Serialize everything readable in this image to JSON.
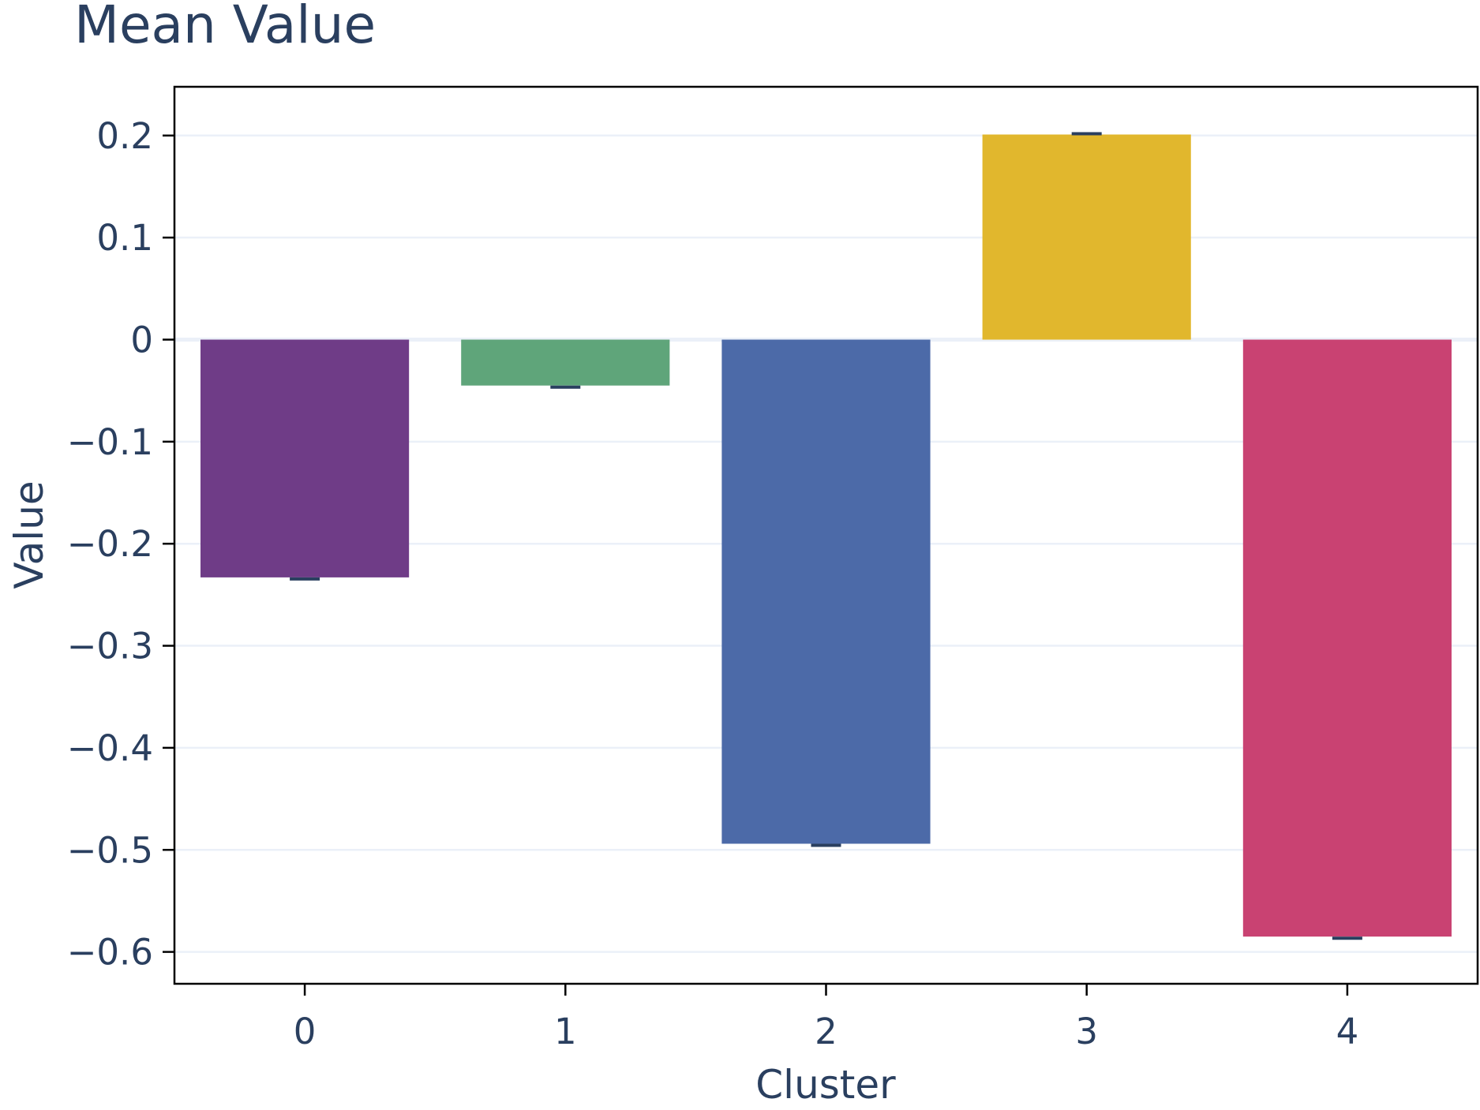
{
  "chart_data": {
    "type": "bar",
    "title": "Mean Value",
    "xlabel": "Cluster",
    "ylabel": "Value",
    "categories": [
      "0",
      "1",
      "2",
      "3",
      "4"
    ],
    "values": [
      -0.233,
      -0.045,
      -0.494,
      0.201,
      -0.585
    ],
    "bar_colors": [
      "#6f3c87",
      "#5fa57a",
      "#4c6aa8",
      "#e1b72d",
      "#c94272"
    ],
    "ylim": [
      -0.63,
      0.25
    ],
    "yticks": [
      0.2,
      0.1,
      0,
      -0.1,
      -0.2,
      -0.3,
      -0.4,
      -0.5,
      -0.6
    ],
    "ytick_labels": [
      "0.2",
      "0.1",
      "0",
      "−0.1",
      "−0.2",
      "−0.3",
      "−0.4",
      "−0.5",
      "−0.6"
    ],
    "error_bars": true,
    "grid": true,
    "legend": "none",
    "colors": {
      "text": "#2a3f5f",
      "grid": "#ebf0f8",
      "axis": "#000000",
      "error_bar": "#2a3f5f"
    }
  }
}
